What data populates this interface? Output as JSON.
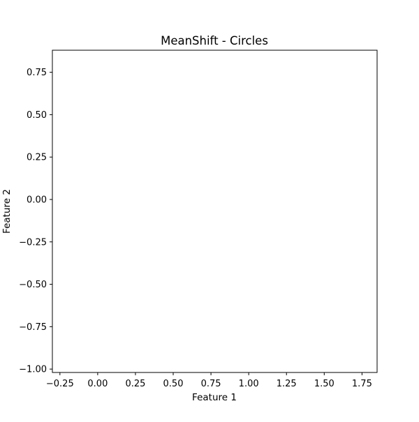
{
  "chart_data": {
    "type": "scatter",
    "title": "MeanShift - Circles",
    "xlabel": "Feature 1",
    "ylabel": "Feature 2",
    "xlim": [
      -0.3,
      1.85
    ],
    "ylim": [
      -1.02,
      0.88
    ],
    "x_ticks": [
      -0.25,
      0.0,
      0.25,
      0.5,
      0.75,
      1.0,
      1.25,
      1.5,
      1.75
    ],
    "x_tick_labels": [
      "−0.25",
      "0.00",
      "0.25",
      "0.50",
      "0.75",
      "1.00",
      "1.25",
      "1.50",
      "1.75"
    ],
    "y_ticks": [
      0.75,
      0.5,
      0.25,
      0.0,
      -0.25,
      -0.5,
      -0.75,
      -1.0
    ],
    "y_tick_labels": [
      "0.75",
      "0.50",
      "0.25",
      "0.00",
      "−0.25",
      "−0.50",
      "−0.75",
      "−1.00"
    ],
    "grid": false,
    "series": [],
    "colors": {
      "frame": "#000000",
      "background": "#ffffff"
    }
  }
}
